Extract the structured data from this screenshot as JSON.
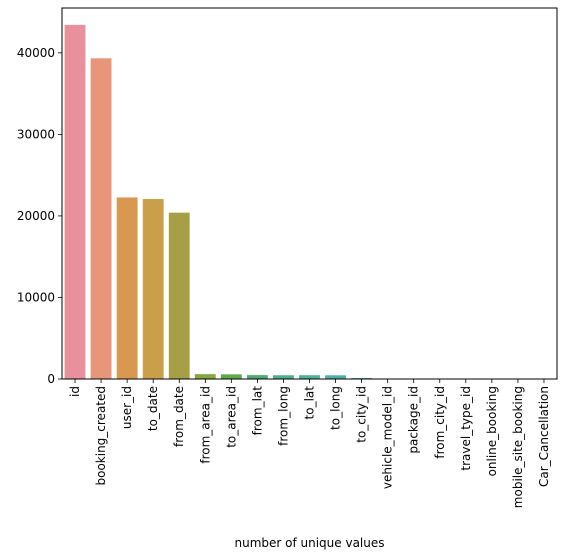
{
  "chart_data": {
    "type": "bar",
    "title": "",
    "xlabel": "number of unique values",
    "ylabel": "",
    "ylim": [
      0,
      45500
    ],
    "yticks": [
      0,
      10000,
      20000,
      30000,
      40000
    ],
    "ytick_labels": [
      "0",
      "10000",
      "20000",
      "30000",
      "40000"
    ],
    "grid": false,
    "categories": [
      "id",
      "booking_created",
      "user_id",
      "to_date",
      "from_date",
      "from_area_id",
      "to_area_id",
      "from_lat",
      "from_long",
      "to_lat",
      "to_long",
      "to_city_id",
      "vehicle_model_id",
      "package_id",
      "from_city_id",
      "travel_type_id",
      "online_booking",
      "mobile_site_booking",
      "Car_Cancellation"
    ],
    "values": [
      43431,
      39330,
      22267,
      22073,
      20398,
      598,
      568,
      477,
      460,
      468,
      456,
      120,
      25,
      8,
      2,
      3,
      2,
      2,
      2
    ],
    "colors": [
      "#E8909B",
      "#E8967A",
      "#D9984F",
      "#C9A049",
      "#A79F46",
      "#86A845",
      "#5BAA4B",
      "#4CAE72",
      "#4DAF8B",
      "#4FB09C",
      "#50AEAA",
      "#52ACB8",
      "#57A9CA",
      "#62A2DD",
      "#8597E6",
      "#A98BE6",
      "#C681DE",
      "#DE82CC",
      "#E687B4"
    ]
  }
}
